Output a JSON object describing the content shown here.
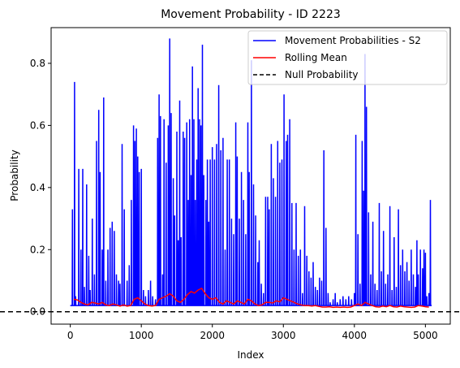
{
  "chart_data": {
    "type": "line",
    "title": "Movement Probability - ID 2223",
    "xlabel": "Index",
    "ylabel": "Probability",
    "xlim": [
      -270,
      5350
    ],
    "ylim": [
      -0.04,
      0.915
    ],
    "xticks": [
      0,
      1000,
      2000,
      3000,
      4000,
      5000
    ],
    "yticks": [
      0.0,
      0.2,
      0.4,
      0.6,
      0.8
    ],
    "ytick_labels": [
      "0.0",
      "0.2",
      "0.4",
      "0.6",
      "0.8"
    ],
    "legend": {
      "placement": "top-right"
    },
    "grid": false,
    "series": [
      {
        "name": "Movement Probabilities - S2",
        "color": "#0000ff",
        "style": "solid",
        "baseline": 0.02,
        "x_range": [
          0,
          5085
        ],
        "peaks": [
          [
            30,
            0.33
          ],
          [
            60,
            0.74
          ],
          [
            75,
            0.05
          ],
          [
            120,
            0.46
          ],
          [
            150,
            0.2
          ],
          [
            175,
            0.46
          ],
          [
            200,
            0.08
          ],
          [
            230,
            0.41
          ],
          [
            260,
            0.18
          ],
          [
            280,
            0.07
          ],
          [
            310,
            0.3
          ],
          [
            340,
            0.12
          ],
          [
            370,
            0.55
          ],
          [
            400,
            0.65
          ],
          [
            420,
            0.45
          ],
          [
            450,
            0.2
          ],
          [
            470,
            0.69
          ],
          [
            500,
            0.1
          ],
          [
            530,
            0.2
          ],
          [
            560,
            0.27
          ],
          [
            590,
            0.29
          ],
          [
            620,
            0.26
          ],
          [
            650,
            0.12
          ],
          [
            680,
            0.1
          ],
          [
            700,
            0.09
          ],
          [
            730,
            0.54
          ],
          [
            760,
            0.33
          ],
          [
            800,
            0.1
          ],
          [
            830,
            0.15
          ],
          [
            860,
            0.36
          ],
          [
            890,
            0.6
          ],
          [
            910,
            0.55
          ],
          [
            930,
            0.59
          ],
          [
            950,
            0.5
          ],
          [
            970,
            0.45
          ],
          [
            1000,
            0.46
          ],
          [
            1030,
            0.07
          ],
          [
            1060,
            0.05
          ],
          [
            1100,
            0.07
          ],
          [
            1130,
            0.1
          ],
          [
            1160,
            0.05
          ],
          [
            1200,
            0.04
          ],
          [
            1230,
            0.56
          ],
          [
            1250,
            0.7
          ],
          [
            1270,
            0.63
          ],
          [
            1300,
            0.12
          ],
          [
            1320,
            0.62
          ],
          [
            1350,
            0.48
          ],
          [
            1380,
            0.6
          ],
          [
            1400,
            0.88
          ],
          [
            1420,
            0.64
          ],
          [
            1450,
            0.43
          ],
          [
            1470,
            0.31
          ],
          [
            1500,
            0.58
          ],
          [
            1520,
            0.23
          ],
          [
            1540,
            0.68
          ],
          [
            1560,
            0.24
          ],
          [
            1590,
            0.58
          ],
          [
            1610,
            0.56
          ],
          [
            1640,
            0.61
          ],
          [
            1660,
            0.36
          ],
          [
            1680,
            0.62
          ],
          [
            1700,
            0.44
          ],
          [
            1720,
            0.79
          ],
          [
            1740,
            0.62
          ],
          [
            1760,
            0.36
          ],
          [
            1780,
            0.49
          ],
          [
            1800,
            0.72
          ],
          [
            1820,
            0.62
          ],
          [
            1840,
            0.6
          ],
          [
            1860,
            0.86
          ],
          [
            1880,
            0.44
          ],
          [
            1910,
            0.36
          ],
          [
            1930,
            0.49
          ],
          [
            1950,
            0.29
          ],
          [
            1970,
            0.49
          ],
          [
            2000,
            0.53
          ],
          [
            2030,
            0.49
          ],
          [
            2060,
            0.54
          ],
          [
            2090,
            0.73
          ],
          [
            2120,
            0.52
          ],
          [
            2150,
            0.56
          ],
          [
            2180,
            0.2
          ],
          [
            2210,
            0.49
          ],
          [
            2240,
            0.49
          ],
          [
            2270,
            0.3
          ],
          [
            2300,
            0.25
          ],
          [
            2330,
            0.61
          ],
          [
            2350,
            0.5
          ],
          [
            2380,
            0.3
          ],
          [
            2410,
            0.45
          ],
          [
            2440,
            0.36
          ],
          [
            2470,
            0.25
          ],
          [
            2500,
            0.61
          ],
          [
            2520,
            0.45
          ],
          [
            2550,
            0.81
          ],
          [
            2580,
            0.41
          ],
          [
            2610,
            0.31
          ],
          [
            2640,
            0.16
          ],
          [
            2660,
            0.23
          ],
          [
            2690,
            0.09
          ],
          [
            2720,
            0.06
          ],
          [
            2750,
            0.37
          ],
          [
            2780,
            0.37
          ],
          [
            2800,
            0.33
          ],
          [
            2830,
            0.54
          ],
          [
            2860,
            0.43
          ],
          [
            2890,
            0.37
          ],
          [
            2920,
            0.55
          ],
          [
            2950,
            0.48
          ],
          [
            2980,
            0.49
          ],
          [
            3010,
            0.7
          ],
          [
            3040,
            0.55
          ],
          [
            3060,
            0.57
          ],
          [
            3090,
            0.62
          ],
          [
            3120,
            0.35
          ],
          [
            3150,
            0.2
          ],
          [
            3180,
            0.35
          ],
          [
            3210,
            0.18
          ],
          [
            3240,
            0.2
          ],
          [
            3270,
            0.06
          ],
          [
            3300,
            0.34
          ],
          [
            3330,
            0.18
          ],
          [
            3360,
            0.13
          ],
          [
            3390,
            0.11
          ],
          [
            3420,
            0.16
          ],
          [
            3450,
            0.08
          ],
          [
            3480,
            0.07
          ],
          [
            3510,
            0.11
          ],
          [
            3540,
            0.1
          ],
          [
            3570,
            0.52
          ],
          [
            3600,
            0.27
          ],
          [
            3630,
            0.06
          ],
          [
            3660,
            0.03
          ],
          [
            3700,
            0.04
          ],
          [
            3730,
            0.06
          ],
          [
            3760,
            0.03
          ],
          [
            3800,
            0.04
          ],
          [
            3840,
            0.05
          ],
          [
            3880,
            0.04
          ],
          [
            3920,
            0.05
          ],
          [
            3960,
            0.04
          ],
          [
            4000,
            0.06
          ],
          [
            4020,
            0.57
          ],
          [
            4050,
            0.25
          ],
          [
            4080,
            0.09
          ],
          [
            4110,
            0.55
          ],
          [
            4130,
            0.39
          ],
          [
            4150,
            0.83
          ],
          [
            4170,
            0.66
          ],
          [
            4200,
            0.32
          ],
          [
            4230,
            0.12
          ],
          [
            4260,
            0.29
          ],
          [
            4290,
            0.09
          ],
          [
            4320,
            0.07
          ],
          [
            4350,
            0.35
          ],
          [
            4380,
            0.13
          ],
          [
            4410,
            0.26
          ],
          [
            4440,
            0.09
          ],
          [
            4470,
            0.12
          ],
          [
            4500,
            0.34
          ],
          [
            4530,
            0.07
          ],
          [
            4560,
            0.24
          ],
          [
            4590,
            0.08
          ],
          [
            4620,
            0.33
          ],
          [
            4650,
            0.15
          ],
          [
            4680,
            0.2
          ],
          [
            4710,
            0.13
          ],
          [
            4740,
            0.16
          ],
          [
            4770,
            0.1
          ],
          [
            4800,
            0.2
          ],
          [
            4830,
            0.12
          ],
          [
            4860,
            0.08
          ],
          [
            4880,
            0.23
          ],
          [
            4900,
            0.12
          ],
          [
            4930,
            0.2
          ],
          [
            4960,
            0.14
          ],
          [
            4980,
            0.2
          ],
          [
            5000,
            0.19
          ],
          [
            5020,
            0.05
          ],
          [
            5050,
            0.06
          ],
          [
            5070,
            0.36
          ],
          [
            5085,
            0.02
          ]
        ]
      },
      {
        "name": "Rolling Mean",
        "color": "#ff0000",
        "style": "solid",
        "x": [
          50,
          100,
          150,
          200,
          250,
          300,
          350,
          400,
          450,
          500,
          550,
          600,
          650,
          700,
          750,
          800,
          850,
          900,
          950,
          1000,
          1050,
          1100,
          1150,
          1200,
          1250,
          1300,
          1350,
          1400,
          1450,
          1500,
          1550,
          1600,
          1650,
          1700,
          1750,
          1800,
          1850,
          1900,
          1950,
          2000,
          2050,
          2100,
          2150,
          2200,
          2250,
          2300,
          2350,
          2400,
          2450,
          2500,
          2550,
          2600,
          2650,
          2700,
          2750,
          2800,
          2850,
          2900,
          2950,
          3000,
          3050,
          3100,
          3150,
          3200,
          3250,
          3300,
          3350,
          3400,
          3450,
          3500,
          3550,
          3600,
          3650,
          3700,
          3750,
          3800,
          3850,
          3900,
          3950,
          4000,
          4050,
          4100,
          4150,
          4200,
          4250,
          4300,
          4350,
          4400,
          4450,
          4500,
          4550,
          4600,
          4650,
          4700,
          4750,
          4800,
          4850,
          4900,
          4950,
          5000,
          5050
        ],
        "y": [
          0.04,
          0.038,
          0.03,
          0.025,
          0.022,
          0.03,
          0.028,
          0.025,
          0.03,
          0.022,
          0.02,
          0.025,
          0.022,
          0.018,
          0.022,
          0.018,
          0.02,
          0.04,
          0.045,
          0.035,
          0.025,
          0.02,
          0.018,
          0.02,
          0.04,
          0.045,
          0.05,
          0.058,
          0.05,
          0.035,
          0.03,
          0.04,
          0.055,
          0.065,
          0.06,
          0.07,
          0.075,
          0.058,
          0.045,
          0.04,
          0.045,
          0.03,
          0.025,
          0.035,
          0.03,
          0.025,
          0.035,
          0.03,
          0.025,
          0.04,
          0.035,
          0.025,
          0.02,
          0.022,
          0.03,
          0.03,
          0.028,
          0.035,
          0.032,
          0.045,
          0.04,
          0.035,
          0.03,
          0.025,
          0.022,
          0.02,
          0.02,
          0.018,
          0.02,
          0.017,
          0.015,
          0.015,
          0.016,
          0.014,
          0.015,
          0.014,
          0.015,
          0.014,
          0.015,
          0.02,
          0.025,
          0.02,
          0.03,
          0.025,
          0.02,
          0.016,
          0.015,
          0.018,
          0.016,
          0.02,
          0.016,
          0.015,
          0.018,
          0.016,
          0.015,
          0.014,
          0.015,
          0.02,
          0.018,
          0.016,
          0.015
        ]
      },
      {
        "name": "Null Probability",
        "color": "#000000",
        "style": "dashed",
        "y": 0.0
      }
    ]
  }
}
